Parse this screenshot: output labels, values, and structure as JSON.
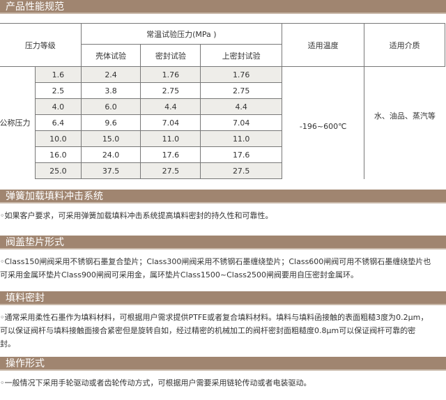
{
  "spec_section": {
    "title": "产品性能规范",
    "headers": {
      "pressure_class": "压力等级",
      "test_pressure": "常温试验压力(MPa )",
      "shell_test": "壳体试验",
      "seal_test": "密封试验",
      "upper_seal_test": "上密封试验",
      "temperature": "适用温度",
      "medium": "适用介质"
    },
    "row_label": "公称压力",
    "rows": [
      [
        "1.6",
        "2.4",
        "1.76",
        "1.76"
      ],
      [
        "2.5",
        "3.8",
        "2.75",
        "2.75"
      ],
      [
        "4.0",
        "6.0",
        "4.4",
        "4.4"
      ],
      [
        "6.4",
        "9.6",
        "7.04",
        "7.04"
      ],
      [
        "10.0",
        "15.0",
        "11.0",
        "11.0"
      ],
      [
        "16.0",
        "24.0",
        "17.6",
        "17.6"
      ],
      [
        "25.0",
        "37.5",
        "27.5",
        "27.5"
      ]
    ],
    "temperature_value": "-196~600℃",
    "medium_value": "水、油品、蒸汽等"
  },
  "sections": [
    {
      "title": "弹簧加载填料冲击系统",
      "lines": [
        "◦如果客户要求，可采用弹簧加载填料冲击系统提高填料密封的持久性和可靠性。"
      ]
    },
    {
      "title": "阀盖垫片形式",
      "lines": [
        "◦Class150闸阀采用不锈钢石墨复合垫片；Class300闸阀采用不锈钢石墨缠绕垫片；Class600闸阀可用不锈钢石墨缠绕垫片也",
        "可采用金属环垫片Class900闸阀可采用金，属环垫片Class1500~Class2500闸阀要用自压密封金属环。"
      ]
    },
    {
      "title": "填料密封",
      "lines": [
        "◦通常采用柔性石墨作为填料材料，可根据用户需求提供PTFE或者复合填料材料。填料与填料函接触的表面粗糙3度为0.2μm，",
        "可以保证阀杆与填料接触面接合紧密但是旋转自如，经过精密的机械加工的阀杆密封面粗糙度0.8μm可以保证阀杆可靠的密",
        "封。"
      ]
    },
    {
      "title": "操作形式",
      "lines": [
        "◦一般情况下采用手轮驱动或者齿轮传动方式，可根据用户需要采用链轮传动或者电装驱动。"
      ]
    }
  ],
  "colors": {
    "bar": "#a08570",
    "row_shade": "#eeede9"
  }
}
